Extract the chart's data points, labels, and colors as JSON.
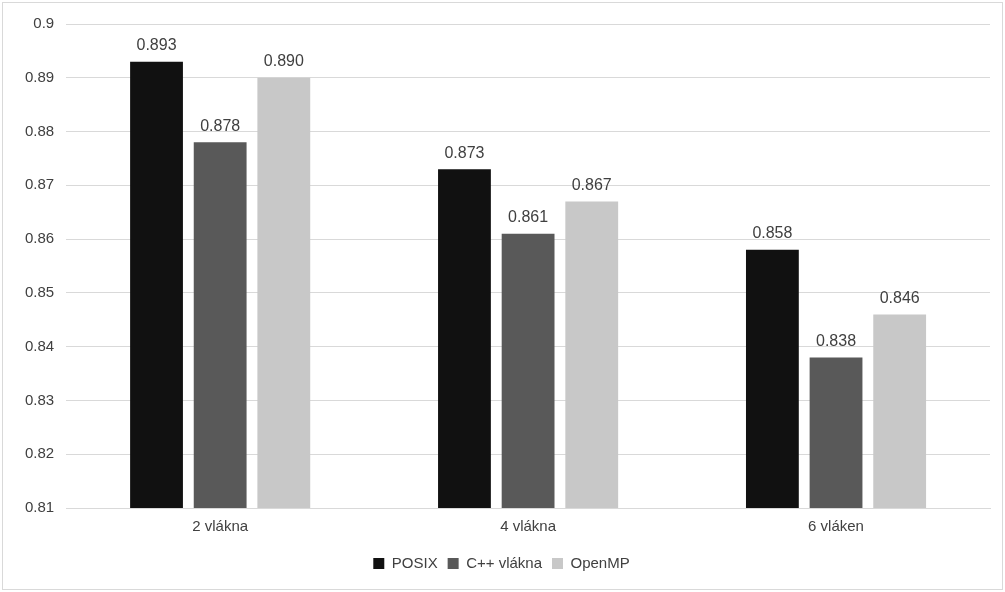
{
  "chart_data": {
    "type": "bar",
    "categories": [
      "2 vlákna",
      "4 vlákna",
      "6 vláken"
    ],
    "series": [
      {
        "name": "POSIX",
        "color": "#111111",
        "values": [
          0.893,
          0.873,
          0.858
        ],
        "value_labels": [
          "0.893",
          "0.873",
          "0.858"
        ]
      },
      {
        "name": "C++ vlákna",
        "color": "#595959",
        "values": [
          0.878,
          0.861,
          0.838
        ],
        "value_labels": [
          "0.878",
          "0.861",
          "0.838"
        ]
      },
      {
        "name": "OpenMP",
        "color": "#c8c8c8",
        "values": [
          0.89,
          0.867,
          0.846
        ],
        "value_labels": [
          "0.890",
          "0.867",
          "0.846"
        ]
      }
    ],
    "ylim": [
      0.81,
      0.9
    ],
    "yticks": [
      0.81,
      0.82,
      0.83,
      0.84,
      0.85,
      0.86,
      0.87,
      0.88,
      0.89,
      0.9
    ],
    "grid": "y",
    "legend": "bottom"
  }
}
